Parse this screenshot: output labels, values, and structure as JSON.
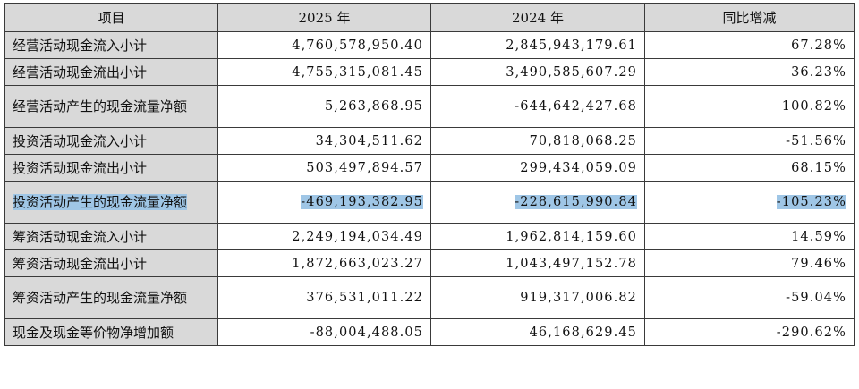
{
  "table": {
    "headers": [
      "项目",
      "2025 年",
      "2024 年",
      "同比增减"
    ],
    "rows": [
      {
        "label": "经营活动现金流入小计",
        "v2025": "4,760,578,950.40",
        "v2024": "2,845,943,179.61",
        "change": "67.28%"
      },
      {
        "label": "经营活动现金流出小计",
        "v2025": "4,755,315,081.45",
        "v2024": "3,490,585,607.29",
        "change": "36.23%"
      },
      {
        "label": "经营活动产生的现金流量净额",
        "v2025": "5,263,868.95",
        "v2024": "-644,642,427.68",
        "change": "100.82%"
      },
      {
        "label": "投资活动现金流入小计",
        "v2025": "34,304,511.62",
        "v2024": "70,818,068.25",
        "change": "-51.56%"
      },
      {
        "label": "投资活动现金流出小计",
        "v2025": "503,497,894.57",
        "v2024": "299,434,059.09",
        "change": "68.15%"
      },
      {
        "label": "投资活动产生的现金流量净额",
        "v2025": "-469,193,382.95",
        "v2024": "-228,615,990.84",
        "change": "-105.23%"
      },
      {
        "label": "筹资活动现金流入小计",
        "v2025": "2,249,194,034.49",
        "v2024": "1,962,814,159.60",
        "change": "14.59%"
      },
      {
        "label": "筹资活动现金流出小计",
        "v2025": "1,872,663,023.27",
        "v2024": "1,043,497,152.78",
        "change": "79.46%"
      },
      {
        "label": "筹资活动产生的现金流量净额",
        "v2025": "376,531,011.22",
        "v2024": "919,317,006.82",
        "change": "-59.04%"
      },
      {
        "label": "现金及现金等价物净增加额",
        "v2025": "-88,004,488.05",
        "v2024": "46,168,629.45",
        "change": "-290.62%"
      }
    ],
    "highlighted_row": 5
  },
  "colors": {
    "header_bg": "#d9d9d9",
    "label_bg": "#d9d9d9",
    "selection_highlight": "#9fc6e6",
    "border": "#3a3a3a"
  }
}
